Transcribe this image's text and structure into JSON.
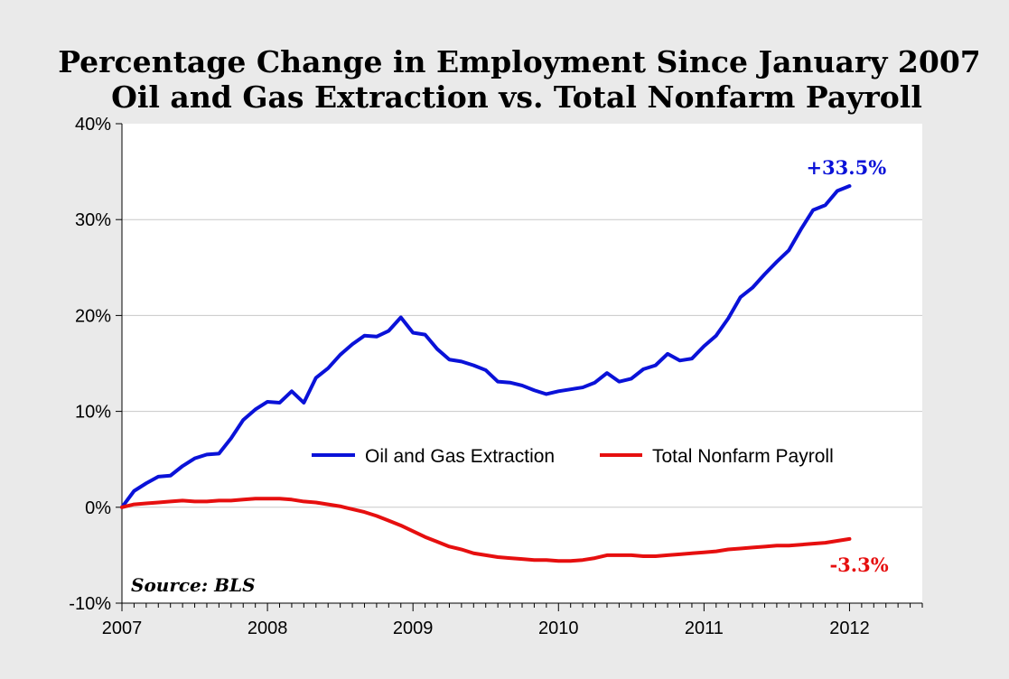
{
  "chart_data": {
    "type": "line",
    "title": "Percentage Change in Employment Since January 2007",
    "subtitle": "Oil and Gas Extraction vs. Total Nonfarm Payroll",
    "xlabel": "",
    "ylabel": "",
    "x_start": 2007,
    "x_step_months": 1,
    "xlim": [
      2007,
      2012.5
    ],
    "ylim": [
      -10,
      40
    ],
    "x_ticks": [
      {
        "value": 2007,
        "label": "2007"
      },
      {
        "value": 2008,
        "label": "2008"
      },
      {
        "value": 2009,
        "label": "2009"
      },
      {
        "value": 2010,
        "label": "2010"
      },
      {
        "value": 2011,
        "label": "2011"
      },
      {
        "value": 2012,
        "label": "2012"
      }
    ],
    "y_ticks": [
      {
        "value": 40,
        "label": "40%"
      },
      {
        "value": 30,
        "label": "30%"
      },
      {
        "value": 20,
        "label": "20%"
      },
      {
        "value": 10,
        "label": "10%"
      },
      {
        "value": 0,
        "label": "0%"
      },
      {
        "value": -10,
        "label": "-10%"
      }
    ],
    "grid": true,
    "legend_position": "center-right",
    "series": [
      {
        "name": "Oil and Gas Extraction",
        "color": "#0a12d8",
        "end_label": "+33.5%",
        "values": [
          0,
          1.7,
          2.5,
          3.2,
          3.3,
          4.3,
          5.1,
          5.5,
          5.6,
          7.2,
          9.1,
          10.2,
          11.0,
          10.9,
          12.1,
          10.9,
          13.5,
          14.5,
          15.9,
          17.0,
          17.9,
          17.8,
          18.4,
          19.8,
          18.2,
          18.0,
          16.5,
          15.4,
          15.2,
          14.8,
          14.3,
          13.1,
          13.0,
          12.7,
          12.2,
          11.8,
          12.1,
          12.3,
          12.5,
          13.0,
          14.0,
          13.1,
          13.4,
          14.4,
          14.8,
          16.0,
          15.3,
          15.5,
          16.8,
          17.9,
          19.7,
          21.9,
          22.9,
          24.3,
          25.6,
          26.8,
          29.0,
          31.0,
          31.5,
          33.0,
          33.5
        ]
      },
      {
        "name": "Total Nonfarm Payroll",
        "color": "#e60f0f",
        "end_label": "-3.3%",
        "values": [
          0,
          0.3,
          0.4,
          0.5,
          0.6,
          0.7,
          0.6,
          0.6,
          0.7,
          0.7,
          0.8,
          0.9,
          0.9,
          0.9,
          0.8,
          0.6,
          0.5,
          0.3,
          0.1,
          -0.2,
          -0.5,
          -0.9,
          -1.4,
          -1.9,
          -2.5,
          -3.1,
          -3.6,
          -4.1,
          -4.4,
          -4.8,
          -5.0,
          -5.2,
          -5.3,
          -5.4,
          -5.5,
          -5.5,
          -5.6,
          -5.6,
          -5.5,
          -5.3,
          -5.0,
          -5.0,
          -5.0,
          -5.1,
          -5.1,
          -5.0,
          -4.9,
          -4.8,
          -4.7,
          -4.6,
          -4.4,
          -4.3,
          -4.2,
          -4.1,
          -4.0,
          -4.0,
          -3.9,
          -3.8,
          -3.7,
          -3.5,
          -3.3
        ]
      }
    ],
    "annotation": "Source: BLS"
  }
}
